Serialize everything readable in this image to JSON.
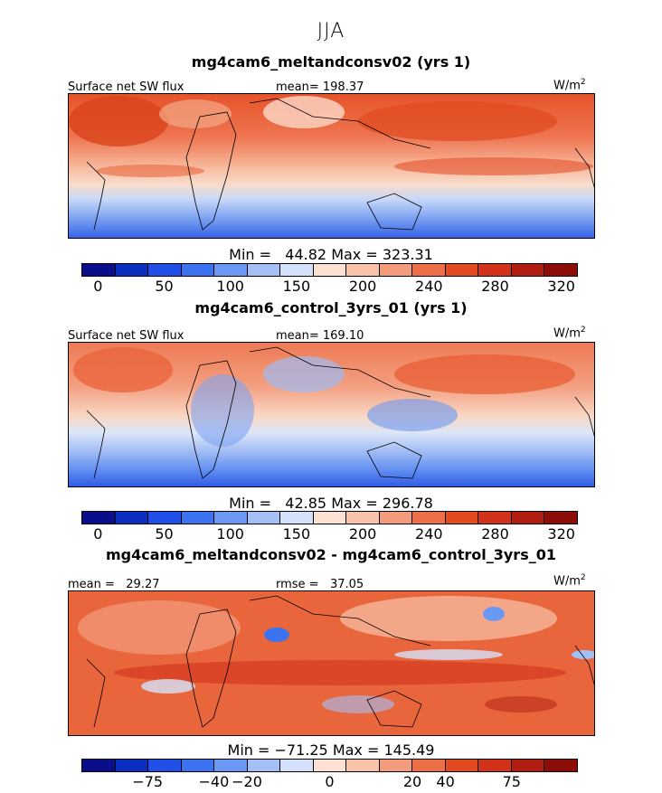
{
  "figure": {
    "season": "JJA",
    "units": "W/m",
    "units_sup": "2"
  },
  "panels": [
    {
      "title": "mg4cam6_meltandconsv02 (yrs 1)",
      "left_label": "Surface net SW flux",
      "stat_label": "mean= 198.37",
      "minmax": "Min =   44.82 Max = 323.31",
      "colorbar": "seq"
    },
    {
      "title": "mg4cam6_control_3yrs_01 (yrs 1)",
      "left_label": "Surface net SW flux",
      "stat_label": "mean= 169.10",
      "minmax": "Min =   42.85 Max = 296.78",
      "colorbar": "seq"
    },
    {
      "title": "mg4cam6_meltandconsv02 - mg4cam6_control_3yrs_01",
      "left_label": "mean =   29.27",
      "stat_label": "rmse =   37.05",
      "minmax": "Min = −71.25 Max = 145.49",
      "colorbar": "diff"
    }
  ],
  "colorbars": {
    "seq_ticks": [
      "0",
      "50",
      "100",
      "150",
      "200",
      "240",
      "280",
      "320"
    ],
    "diff_ticks": [
      "−75",
      "−40",
      "−20",
      "0",
      "20",
      "40",
      "75"
    ],
    "colors": [
      "#0b0e8a",
      "#0a2fc0",
      "#1f4fe6",
      "#3c73f0",
      "#6b98f2",
      "#a3bff5",
      "#d3e2fa",
      "#fde2d3",
      "#f8c3a8",
      "#f29c7c",
      "#ec6f48",
      "#e44a1f",
      "#d2321a",
      "#b21d11",
      "#8c0c08"
    ]
  }
}
